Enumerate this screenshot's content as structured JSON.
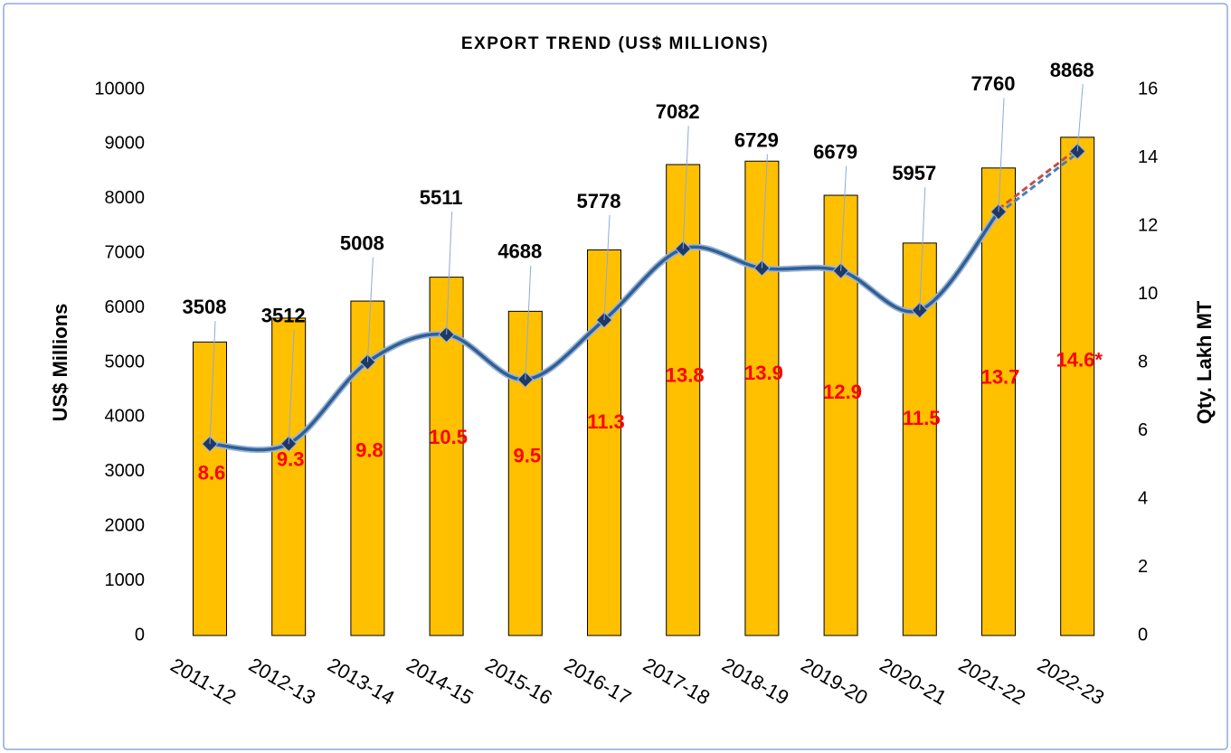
{
  "chart_data": {
    "type": "bar_line",
    "title": "EXPORT TREND (US$ MILLIONS)",
    "y_label": "US$ Millions",
    "y2_label": "Qty. Lakh MT",
    "categories": [
      "2011-12",
      "2012-13",
      "2013-14",
      "2014-15",
      "2015-16",
      "2016-17",
      "2017-18",
      "2018-19",
      "2019-20",
      "2020-21",
      "2021-22",
      "2022-23"
    ],
    "series": [
      {
        "name": "Qty. Lakh MT",
        "type": "bar",
        "axis": "y2",
        "color": "#ffc000",
        "values": [
          8.6,
          9.3,
          9.8,
          10.5,
          9.5,
          11.3,
          13.8,
          13.9,
          12.9,
          11.5,
          13.7,
          14.6
        ],
        "value_labels": [
          "8.6",
          "9.3",
          "9.8",
          "10.5",
          "9.5",
          "11.3",
          "13.8",
          "13.9",
          "12.9",
          "11.5",
          "13.7",
          "14.6*"
        ]
      },
      {
        "name": "US$ Millions",
        "type": "line",
        "axis": "y",
        "color": "#2f5f95",
        "values": [
          3508,
          3512,
          5008,
          5511,
          4688,
          5778,
          7082,
          6729,
          6679,
          5957,
          7760,
          8868
        ]
      }
    ],
    "ylim": [
      0,
      10000
    ],
    "yticks": [
      0,
      1000,
      2000,
      3000,
      4000,
      5000,
      6000,
      7000,
      8000,
      9000,
      10000
    ],
    "y2lim": [
      0,
      16
    ],
    "y2ticks": [
      0,
      2,
      4,
      6,
      8,
      10,
      12,
      14,
      16
    ]
  }
}
